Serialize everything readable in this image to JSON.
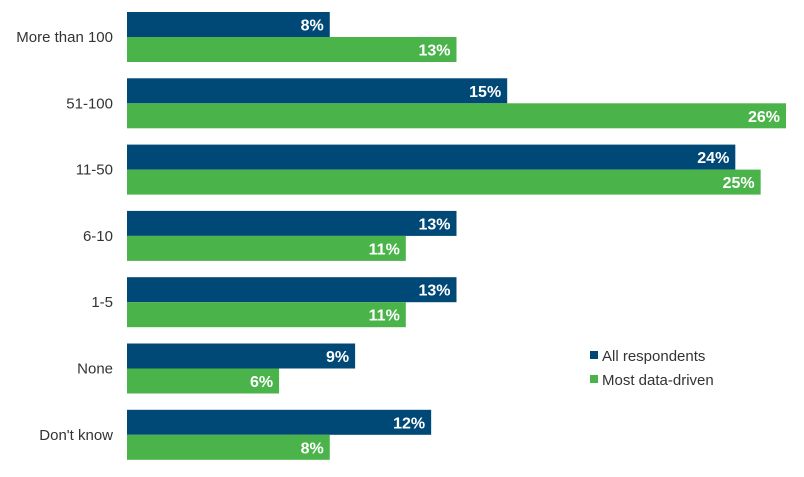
{
  "chart_data": {
    "type": "bar",
    "orientation": "horizontal",
    "categories": [
      "More than 100",
      "51-100",
      "11-50",
      "6-10",
      "1-5",
      "None",
      "Don't know"
    ],
    "series": [
      {
        "name": "All respondents",
        "color": "#004876",
        "values": [
          8,
          15,
          24,
          13,
          13,
          9,
          12
        ],
        "labels": [
          "8%",
          "15%",
          "24%",
          "13%",
          "13%",
          "9%",
          "12%"
        ]
      },
      {
        "name": "Most data-driven",
        "color": "#4ab44a",
        "values": [
          13,
          26,
          25,
          11,
          11,
          6,
          8
        ],
        "labels": [
          "13%",
          "26%",
          "25%",
          "11%",
          "11%",
          "6%",
          "8%"
        ]
      }
    ],
    "xlim": [
      0,
      26
    ],
    "grid": false,
    "legend_position": "right"
  }
}
